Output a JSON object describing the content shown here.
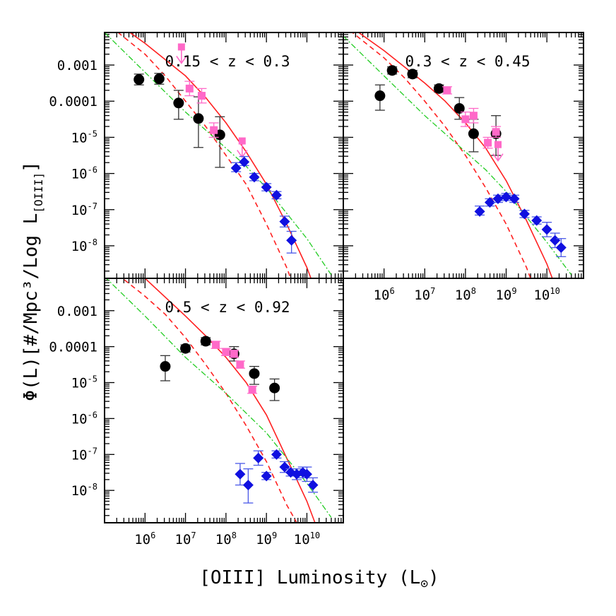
{
  "figure": {
    "xlabel": "[OIII] Luminosity (L⊙)",
    "ylabel": "Φ(L)[#/Mpc³/Log L[OIII]]",
    "ylabel_main": "Φ(L)[#/Mpc³/Log L",
    "ylabel_sub": "[OIII]",
    "ylabel_close": "]",
    "xlabel_main": "[OIII] Luminosity (L",
    "xlabel_sub": "⊙",
    "xlabel_close": ")"
  },
  "ytick_labels": [
    {
      "v": -3,
      "t": "0.001"
    },
    {
      "v": -4,
      "t": "0.0001"
    },
    {
      "v": -5,
      "b": "10",
      "e": "-5"
    },
    {
      "v": -6,
      "b": "10",
      "e": "-6"
    },
    {
      "v": -7,
      "b": "10",
      "e": "-7"
    },
    {
      "v": -8,
      "b": "10",
      "e": "-8"
    }
  ],
  "xtick_labels": [
    {
      "v": 6,
      "b": "10",
      "e": "6"
    },
    {
      "v": 7,
      "b": "10",
      "e": "7"
    },
    {
      "v": 8,
      "b": "10",
      "e": "8"
    },
    {
      "v": 9,
      "b": "10",
      "e": "9"
    },
    {
      "v": 10,
      "b": "10",
      "e": "10"
    }
  ],
  "colors": {
    "black": "#000000",
    "pink": "#ff69c8",
    "blue": "#1010e0",
    "blue_err": "#4a58e8",
    "red": "#ff2020",
    "green": "#22cc22"
  },
  "chart_data": [
    {
      "type": "scatter",
      "title": "0.15 < z < 0.3",
      "xscale": "log",
      "yscale": "log",
      "xlim_log10": [
        5.0,
        10.9
      ],
      "ylim_log10": [
        -8.9,
        -2.1
      ],
      "series": [
        {
          "name": "black circles",
          "marker": "circle",
          "color": "#000000",
          "points": [
            [
              5.85,
              -3.4,
              0.15,
              0.15
            ],
            [
              6.35,
              -3.38,
              0.15,
              0.15
            ],
            [
              6.83,
              -4.05,
              0.35,
              0.45
            ],
            [
              7.32,
              -4.48,
              0.6,
              0.8
            ],
            [
              7.85,
              -4.93,
              0.5,
              0.9
            ]
          ]
        },
        {
          "name": "pink squares",
          "marker": "square",
          "color": "#ff69c8",
          "points": [
            [
              7.1,
              -3.65,
              0.2,
              0.2
            ],
            [
              7.4,
              -3.85,
              0.2,
              0.2
            ],
            [
              7.7,
              -4.8,
              0.2,
              0.2
            ]
          ]
        },
        {
          "name": "pink upper limits",
          "marker": "arrow",
          "color": "#ff69c8",
          "points": [
            [
              6.9,
              -2.5
            ],
            [
              8.4,
              -5.1
            ]
          ]
        },
        {
          "name": "blue diamonds",
          "marker": "diamond",
          "color": "#1010e0",
          "points": [
            [
              8.25,
              -5.85,
              0.15,
              0.1
            ],
            [
              8.45,
              -5.68,
              0.15,
              0.1
            ],
            [
              8.7,
              -6.1,
              0.1,
              0.1
            ],
            [
              9.0,
              -6.38,
              0.1,
              0.1
            ],
            [
              9.25,
              -6.6,
              0.1,
              0.1
            ],
            [
              9.45,
              -7.33,
              0.15,
              0.15
            ],
            [
              9.62,
              -7.85,
              0.25,
              0.35
            ]
          ]
        }
      ],
      "curves": [
        {
          "name": "solid red",
          "style": "solid",
          "color": "#ff2020",
          "points": [
            [
              5.0,
              -1.6
            ],
            [
              6.0,
              -2.4
            ],
            [
              7.0,
              -3.3
            ],
            [
              7.5,
              -3.9
            ],
            [
              8.0,
              -4.6
            ],
            [
              8.5,
              -5.4
            ],
            [
              9.0,
              -6.3
            ],
            [
              9.5,
              -7.4
            ],
            [
              10.0,
              -8.6
            ],
            [
              10.2,
              -9.2
            ]
          ]
        },
        {
          "name": "dashed red",
          "style": "dashed",
          "color": "#ff2020",
          "points": [
            [
              5.0,
              -1.8
            ],
            [
              6.0,
              -2.7
            ],
            [
              6.5,
              -3.3
            ],
            [
              7.0,
              -4.0
            ],
            [
              7.5,
              -4.7
            ],
            [
              8.0,
              -5.5
            ],
            [
              8.5,
              -6.3
            ],
            [
              9.0,
              -7.4
            ],
            [
              9.5,
              -8.6
            ],
            [
              9.7,
              -9.2
            ]
          ]
        },
        {
          "name": "dash-dot green",
          "style": "dashdot",
          "color": "#22cc22",
          "points": [
            [
              5.0,
              -2.1
            ],
            [
              6.0,
              -3.2
            ],
            [
              7.0,
              -4.3
            ],
            [
              8.0,
              -5.3
            ],
            [
              8.5,
              -5.8
            ],
            [
              9.0,
              -6.4
            ],
            [
              9.5,
              -7.1
            ],
            [
              10.0,
              -7.8
            ],
            [
              10.6,
              -8.8
            ]
          ]
        }
      ]
    },
    {
      "type": "scatter",
      "title": "0.3 < z < 0.45",
      "xscale": "log",
      "yscale": "log",
      "xlim_log10": [
        5.0,
        10.9
      ],
      "ylim_log10": [
        -8.9,
        -2.1
      ],
      "series": [
        {
          "name": "black circles",
          "marker": "circle",
          "color": "#000000",
          "points": [
            [
              5.9,
              -3.85,
              0.3,
              0.4
            ],
            [
              6.2,
              -3.15,
              0.1,
              0.1
            ],
            [
              6.7,
              -3.25,
              0.1,
              0.1
            ],
            [
              7.35,
              -3.65,
              0.1,
              0.1
            ],
            [
              7.85,
              -4.2,
              0.3,
              0.3
            ],
            [
              8.2,
              -4.9,
              0.4,
              0.5
            ],
            [
              8.75,
              -4.9,
              0.5,
              0.6
            ]
          ]
        },
        {
          "name": "pink squares",
          "marker": "square",
          "color": "#ff69c8",
          "points": [
            [
              7.55,
              -3.7,
              0.1,
              0.1
            ],
            [
              8.0,
              -4.5,
              0.2,
              0.2
            ],
            [
              8.2,
              -4.4,
              0.2,
              0.2
            ],
            [
              8.55,
              -5.15,
              0.15,
              0.15
            ],
            [
              8.75,
              -4.85,
              0.15,
              0.15
            ]
          ]
        },
        {
          "name": "pink upper limits",
          "marker": "arrow",
          "color": "#ff69c8",
          "points": [
            [
              8.8,
              -5.2
            ]
          ]
        },
        {
          "name": "blue diamonds",
          "marker": "diamond",
          "color": "#1010e0",
          "points": [
            [
              8.35,
              -7.05,
              0.15,
              0.1
            ],
            [
              8.6,
              -6.8,
              0.1,
              0.1
            ],
            [
              8.8,
              -6.7,
              0.1,
              0.1
            ],
            [
              9.0,
              -6.65,
              0.1,
              0.1
            ],
            [
              9.2,
              -6.7,
              0.1,
              0.1
            ],
            [
              9.45,
              -7.12,
              0.1,
              0.1
            ],
            [
              9.75,
              -7.3,
              0.1,
              0.1
            ],
            [
              10.0,
              -7.55,
              0.2,
              0.2
            ],
            [
              10.2,
              -7.85,
              0.2,
              0.2
            ],
            [
              10.35,
              -8.05,
              0.25,
              0.25
            ]
          ]
        }
      ],
      "curves": [
        {
          "name": "solid red",
          "style": "solid",
          "color": "#ff2020",
          "points": [
            [
              5.0,
              -1.8
            ],
            [
              6.0,
              -2.6
            ],
            [
              7.0,
              -3.5
            ],
            [
              7.5,
              -4.0
            ],
            [
              8.0,
              -4.6
            ],
            [
              8.5,
              -5.3
            ],
            [
              9.0,
              -6.2
            ],
            [
              9.5,
              -7.3
            ],
            [
              10.0,
              -8.5
            ],
            [
              10.2,
              -9.1
            ]
          ]
        },
        {
          "name": "dashed red",
          "style": "dashed",
          "color": "#ff2020",
          "points": [
            [
              5.0,
              -1.9
            ],
            [
              6.0,
              -2.8
            ],
            [
              6.5,
              -3.35
            ],
            [
              7.0,
              -4.0
            ],
            [
              7.5,
              -4.7
            ],
            [
              8.0,
              -5.5
            ],
            [
              8.5,
              -6.4
            ],
            [
              9.0,
              -7.4
            ],
            [
              9.5,
              -8.6
            ],
            [
              9.7,
              -9.2
            ]
          ]
        },
        {
          "name": "dash-dot green",
          "style": "dashdot",
          "color": "#22cc22",
          "points": [
            [
              5.0,
              -2.2
            ],
            [
              6.0,
              -3.3
            ],
            [
              7.0,
              -4.4
            ],
            [
              8.0,
              -5.4
            ],
            [
              8.5,
              -5.9
            ],
            [
              9.0,
              -6.5
            ],
            [
              9.5,
              -7.2
            ],
            [
              10.0,
              -7.9
            ],
            [
              10.6,
              -8.8
            ]
          ]
        }
      ]
    },
    {
      "type": "scatter",
      "title": "0.5 < z < 0.92",
      "xscale": "log",
      "yscale": "log",
      "xlim_log10": [
        5.0,
        10.9
      ],
      "ylim_log10": [
        -8.9,
        -2.1
      ],
      "series": [
        {
          "name": "black circles",
          "marker": "circle",
          "color": "#000000",
          "points": [
            [
              6.5,
              -4.55,
              0.3,
              0.4
            ],
            [
              7.0,
              -4.05,
              0.1,
              0.1
            ],
            [
              7.5,
              -3.85,
              0.1,
              0.1
            ],
            [
              8.2,
              -4.2,
              0.2,
              0.2
            ],
            [
              8.7,
              -4.75,
              0.2,
              0.3
            ],
            [
              9.2,
              -5.15,
              0.25,
              0.35
            ]
          ]
        },
        {
          "name": "pink squares",
          "marker": "square",
          "color": "#ff69c8",
          "points": [
            [
              7.75,
              -3.95,
              0.1,
              0.1
            ],
            [
              8.0,
              -4.15,
              0.1,
              0.1
            ],
            [
              8.2,
              -4.2,
              0.1,
              0.1
            ],
            [
              8.35,
              -4.5,
              0.1,
              0.1
            ],
            [
              8.65,
              -5.2,
              0.1,
              0.1
            ]
          ]
        },
        {
          "name": "blue diamonds",
          "marker": "diamond",
          "color": "#1010e0",
          "points": [
            [
              8.35,
              -7.55,
              0.3,
              0.3
            ],
            [
              8.55,
              -7.85,
              0.45,
              0.5
            ],
            [
              8.8,
              -7.1,
              0.2,
              0.2
            ],
            [
              9.0,
              -7.6,
              0.1,
              0.1
            ],
            [
              9.25,
              -7.0,
              0.1,
              0.1
            ],
            [
              9.45,
              -7.35,
              0.15,
              0.15
            ],
            [
              9.6,
              -7.5,
              0.1,
              0.1
            ],
            [
              9.75,
              -7.55,
              0.15,
              0.15
            ],
            [
              9.9,
              -7.5,
              0.15,
              0.15
            ],
            [
              10.0,
              -7.55,
              0.2,
              0.2
            ],
            [
              10.15,
              -7.85,
              0.2,
              0.2
            ]
          ]
        }
      ],
      "curves": [
        {
          "name": "solid red",
          "style": "solid",
          "color": "#ff2020",
          "points": [
            [
              5.0,
              -1.2
            ],
            [
              6.0,
              -2.1
            ],
            [
              7.0,
              -3.15
            ],
            [
              7.5,
              -3.7
            ],
            [
              8.0,
              -4.3
            ],
            [
              8.5,
              -5.0
            ],
            [
              9.0,
              -5.9
            ],
            [
              9.5,
              -7.1
            ],
            [
              10.0,
              -8.3
            ],
            [
              10.2,
              -8.9
            ]
          ]
        },
        {
          "name": "dashed red",
          "style": "dashed",
          "color": "#ff2020",
          "points": [
            [
              5.0,
              -1.7
            ],
            [
              6.0,
              -2.6
            ],
            [
              6.5,
              -3.1
            ],
            [
              7.0,
              -3.75
            ],
            [
              7.5,
              -4.5
            ],
            [
              8.0,
              -5.3
            ],
            [
              8.5,
              -6.2
            ],
            [
              9.0,
              -7.2
            ],
            [
              9.5,
              -8.4
            ],
            [
              9.8,
              -9.0
            ]
          ]
        },
        {
          "name": "dash-dot green",
          "style": "dashdot",
          "color": "#22cc22",
          "points": [
            [
              5.0,
              -2.05
            ],
            [
              6.0,
              -3.15
            ],
            [
              7.0,
              -4.3
            ],
            [
              8.0,
              -5.3
            ],
            [
              8.5,
              -5.85
            ],
            [
              9.0,
              -6.4
            ],
            [
              9.5,
              -7.1
            ],
            [
              10.0,
              -7.8
            ],
            [
              10.6,
              -8.75
            ]
          ]
        }
      ]
    }
  ]
}
